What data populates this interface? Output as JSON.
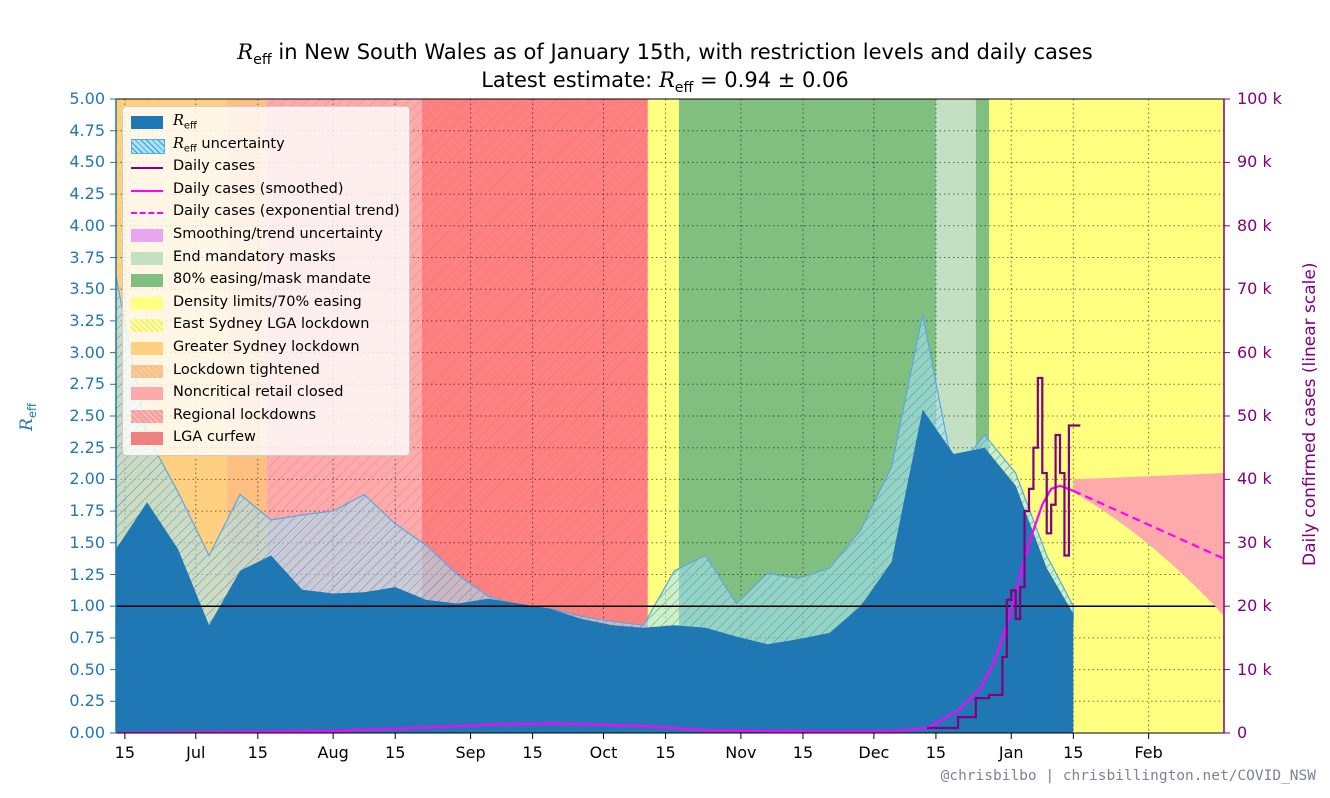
{
  "title": {
    "line1_symbol": "R",
    "line1_sub": "eff",
    "line1_rest": " in New South Wales as of January 15th, with restriction levels and daily cases",
    "line2_prefix": "Latest estimate: ",
    "line2_symbol": "R",
    "line2_sub": "eff",
    "line2_rest": " = 0.94 ± 0.06"
  },
  "axes": {
    "ylabel_left_symbol": "R",
    "ylabel_left_sub": "eff",
    "ylabel_right": "Daily confirmed cases (linear scale)",
    "y_left_ticks": [
      "0.00",
      "0.25",
      "0.50",
      "0.75",
      "1.00",
      "1.25",
      "1.50",
      "1.75",
      "2.00",
      "2.25",
      "2.50",
      "2.75",
      "3.00",
      "3.25",
      "3.50",
      "3.75",
      "4.00",
      "4.25",
      "4.50",
      "4.75",
      "5.00"
    ],
    "y_right_ticks": [
      "0",
      "10 k",
      "20 k",
      "30 k",
      "40 k",
      "50 k",
      "60 k",
      "70 k",
      "80 k",
      "90 k",
      "100 k"
    ],
    "x_ticks": [
      "15",
      "Jul",
      "15",
      "Aug",
      "15",
      "Sep",
      "15",
      "Oct",
      "15",
      "Nov",
      "15",
      "Dec",
      "15",
      "Jan",
      "15",
      "Feb"
    ]
  },
  "legend": {
    "items": [
      {
        "label_symbol": "R",
        "label_sub": "eff",
        "label_rest": "",
        "kind": "patch",
        "color": "#1f77b4"
      },
      {
        "label_symbol": "R",
        "label_sub": "eff",
        "label_rest": " uncertainty",
        "kind": "hatch",
        "color": "#a8e4f5"
      },
      {
        "label": "Daily cases",
        "kind": "line",
        "color": "#800080"
      },
      {
        "label": "Daily cases (smoothed)",
        "kind": "line",
        "color": "#ff00ff"
      },
      {
        "label": "Daily cases (exponential trend)",
        "kind": "dash",
        "color": "#ff00ff"
      },
      {
        "label": "Smoothing/trend uncertainty",
        "kind": "patch",
        "color": "#e9a6f0"
      },
      {
        "label": "End mandatory masks",
        "kind": "patch",
        "color": "#c3e0c3"
      },
      {
        "label": "80% easing/mask mandate",
        "kind": "patch",
        "color": "#80bf80"
      },
      {
        "label": "Density limits/70% easing",
        "kind": "patch",
        "color": "#ffff80"
      },
      {
        "label": "East Sydney LGA lockdown",
        "kind": "hatchpatch",
        "color": "#ffff80"
      },
      {
        "label": "Greater Sydney lockdown",
        "kind": "patch",
        "color": "#ffd080"
      },
      {
        "label": "Lockdown tightened",
        "kind": "hatchpatch",
        "color": "#ffbf80"
      },
      {
        "label": "Noncritical retail closed",
        "kind": "patch",
        "color": "#ffaaaa"
      },
      {
        "label": "Regional lockdowns",
        "kind": "hatchpatch",
        "color": "#ff9c9c"
      },
      {
        "label": "LGA curfew",
        "kind": "patch",
        "color": "#f08080"
      }
    ]
  },
  "credit": "@chrisbilbo | chrisbillington.net/COVID_NSW",
  "colors": {
    "reff": "#1f77b4",
    "reff_unc": "#a8e4f5",
    "cases": "#800080",
    "smoothed": "#ff00ff",
    "trend_unc": "#ffaaaa",
    "masks_end": "#c3e0c3",
    "easing80": "#80bf80",
    "density": "#ffff80",
    "east_sydney": "#ffff80",
    "greater_sydney": "#ffd080",
    "tightened": "#ffbf80",
    "retail_closed": "#ffaaaa",
    "regional": "#ff9c9c",
    "curfew": "#ff8080"
  },
  "chart_data": {
    "type": "area",
    "x_start": "2021-06-13",
    "x_end": "2022-02-18",
    "ylim_left": [
      0,
      5
    ],
    "ylim_right": [
      0,
      100000
    ],
    "reference_line_y": 1.0,
    "latest_estimate": {
      "reff": 0.94,
      "uncertainty": 0.06
    },
    "restriction_periods": [
      {
        "name": "Greater Sydney lockdown",
        "start": "2021-06-13",
        "end": "2021-07-08",
        "style": "greater_sydney"
      },
      {
        "name": "Lockdown tightened",
        "start": "2021-07-08",
        "end": "2021-07-17",
        "style": "tightened"
      },
      {
        "name": "Noncritical retail closed",
        "start": "2021-07-17",
        "end": "2021-08-21",
        "style": "retail_closed"
      },
      {
        "name": "LGA curfew",
        "start": "2021-08-21",
        "end": "2021-10-11",
        "style": "curfew"
      },
      {
        "name": "Density limits/70% easing",
        "start": "2021-10-11",
        "end": "2021-10-18",
        "style": "density"
      },
      {
        "name": "80% easing/mask mandate",
        "start": "2021-10-18",
        "end": "2021-12-15",
        "style": "easing80"
      },
      {
        "name": "End mandatory masks",
        "start": "2021-12-15",
        "end": "2021-12-24",
        "style": "masks_end"
      },
      {
        "name": "80% easing/mask mandate",
        "start": "2021-12-24",
        "end": "2021-12-27",
        "style": "easing80"
      },
      {
        "name": "Density limits/70% easing",
        "start": "2021-12-27",
        "end": "2022-02-18",
        "style": "density"
      }
    ],
    "hatched_periods": [
      {
        "name": "East Sydney LGA lockdown",
        "start": "2021-06-13",
        "end": "2021-06-24"
      },
      {
        "name": "Regional lockdowns",
        "start": "2021-07-17",
        "end": "2021-10-11"
      }
    ],
    "reff_dates": [
      "2021-06-13",
      "2021-06-20",
      "2021-06-27",
      "2021-07-04",
      "2021-07-11",
      "2021-07-18",
      "2021-07-25",
      "2021-08-01",
      "2021-08-08",
      "2021-08-15",
      "2021-08-22",
      "2021-08-29",
      "2021-09-05",
      "2021-09-12",
      "2021-09-19",
      "2021-09-26",
      "2021-10-03",
      "2021-10-10",
      "2021-10-17",
      "2021-10-24",
      "2021-10-31",
      "2021-11-07",
      "2021-11-14",
      "2021-11-21",
      "2021-11-28",
      "2021-12-05",
      "2021-12-12",
      "2021-12-19",
      "2021-12-26",
      "2022-01-02",
      "2022-01-09",
      "2022-01-15"
    ],
    "reff": [
      1.45,
      1.82,
      1.45,
      0.85,
      1.28,
      1.4,
      1.13,
      1.1,
      1.11,
      1.15,
      1.05,
      1.02,
      1.06,
      1.02,
      0.98,
      0.9,
      0.85,
      0.83,
      0.85,
      0.83,
      0.76,
      0.7,
      0.74,
      0.79,
      1.0,
      1.35,
      2.55,
      2.2,
      2.25,
      1.95,
      1.3,
      0.94
    ],
    "reff_upper": [
      3.6,
      2.35,
      1.9,
      1.4,
      1.88,
      1.68,
      1.72,
      1.75,
      1.88,
      1.65,
      1.48,
      1.25,
      1.08,
      1.0,
      0.98,
      0.92,
      0.88,
      0.85,
      1.28,
      1.4,
      1.02,
      1.26,
      1.22,
      1.3,
      1.6,
      2.1,
      3.3,
      2.05,
      2.35,
      2.05,
      1.4,
      1.0
    ],
    "reff_lower": [
      1.4,
      1.8,
      1.4,
      0.8,
      1.1,
      0.8,
      0.8,
      0.82,
      0.85,
      0.84,
      0.9,
      0.86,
      0.82,
      0.8,
      0.78,
      0.72,
      0.7,
      0.68,
      0.72,
      0.66,
      0.62,
      0.6,
      0.64,
      0.7,
      0.95,
      1.3,
      2.5,
      2.15,
      2.2,
      1.9,
      1.25,
      0.9
    ],
    "cases_smoothed_dates": [
      "2021-06-13",
      "2021-08-01",
      "2021-08-20",
      "2021-09-05",
      "2021-09-20",
      "2021-10-10",
      "2021-10-25",
      "2021-11-20",
      "2021-12-05",
      "2021-12-13",
      "2021-12-20",
      "2021-12-25",
      "2021-12-28",
      "2021-12-31",
      "2022-01-02",
      "2022-01-04",
      "2022-01-06",
      "2022-01-08",
      "2022-01-10",
      "2022-01-12",
      "2022-01-15"
    ],
    "cases_smoothed": [
      0,
      300,
      800,
      1300,
      1500,
      1100,
      400,
      200,
      250,
      800,
      3500,
      7000,
      11000,
      17000,
      22000,
      27500,
      32000,
      36000,
      38500,
      39000,
      38200
    ],
    "cases_daily_dates": [
      "2021-12-13",
      "2021-12-20",
      "2021-12-24",
      "2021-12-27",
      "2021-12-30",
      "2021-12-31",
      "2022-01-01",
      "2022-01-02",
      "2022-01-03",
      "2022-01-04",
      "2022-01-05",
      "2022-01-06",
      "2022-01-07",
      "2022-01-08",
      "2022-01-09",
      "2022-01-10",
      "2022-01-11",
      "2022-01-12",
      "2022-01-13",
      "2022-01-14",
      "2022-01-15"
    ],
    "cases_daily": [
      800,
      2500,
      5500,
      6000,
      12000,
      21000,
      22500,
      18000,
      23000,
      35000,
      38500,
      45000,
      56000,
      41000,
      31500,
      36000,
      47000,
      41000,
      28000,
      48500,
      48500
    ],
    "trend_dates": [
      "2022-01-15",
      "2022-02-18"
    ],
    "trend": [
      38200,
      27500
    ],
    "trend_upper": [
      40000,
      41000
    ],
    "trend_lower": [
      38000,
      18500
    ]
  }
}
